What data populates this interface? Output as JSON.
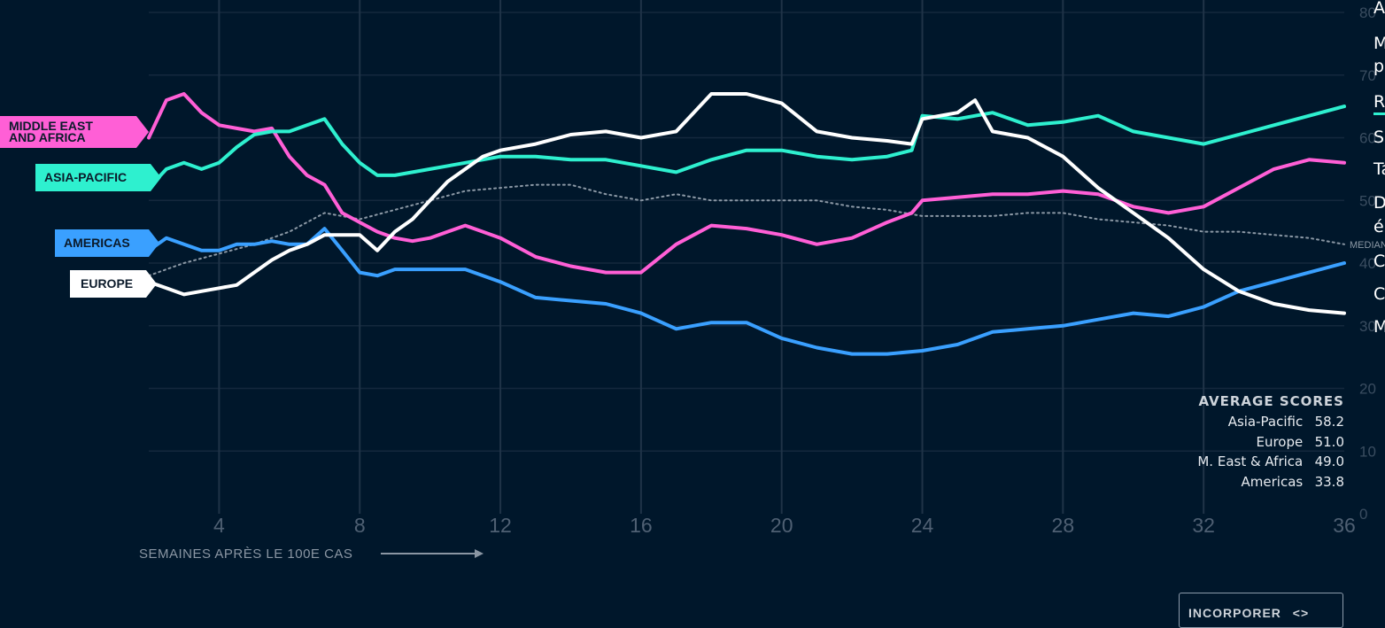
{
  "chart_data": {
    "type": "line",
    "xlabel": "SEMAINES APRÈS LE 100E CAS",
    "xticks": [
      4,
      8,
      12,
      16,
      20,
      24,
      28,
      32,
      36
    ],
    "yticks": [
      0,
      10,
      20,
      30,
      40,
      50,
      60,
      70,
      80
    ],
    "xlim": [
      2,
      36
    ],
    "ylim": [
      0,
      80
    ],
    "median_label": "MEDIAN",
    "series": [
      {
        "name": "MIDDLE EAST AND AFRICA",
        "color": "#ff5fd6",
        "x": [
          2,
          2.5,
          3,
          3.5,
          4,
          4.5,
          5,
          5.5,
          6,
          6.5,
          7,
          7.5,
          8,
          8.5,
          9,
          9.5,
          10,
          10.5,
          11,
          11.5,
          12,
          13,
          14,
          15,
          16,
          17,
          18,
          19,
          20,
          21,
          22,
          23,
          23.7,
          24,
          25,
          26,
          27,
          28,
          29,
          30,
          31,
          32,
          33,
          34,
          35,
          36
        ],
        "values": [
          60,
          66,
          67,
          64,
          62,
          61.5,
          61,
          61.5,
          57,
          54,
          52.5,
          48,
          46.5,
          45,
          44,
          43.5,
          44,
          45,
          46,
          45,
          44,
          41,
          39.5,
          38.5,
          38.5,
          43,
          46,
          45.5,
          44.5,
          43,
          44,
          46.5,
          48,
          50,
          50.5,
          51,
          51,
          51.5,
          51,
          49,
          48,
          49,
          52,
          55,
          56.5,
          56
        ]
      },
      {
        "name": "ASIA-PACIFIC",
        "color": "#2ef0cf",
        "x": [
          2,
          2.5,
          3,
          3.5,
          4,
          4.5,
          5,
          5.5,
          6,
          6.5,
          7,
          7.5,
          8,
          8.5,
          9,
          10,
          11,
          12,
          13,
          14,
          15,
          16,
          17,
          18,
          19,
          20,
          21,
          22,
          23,
          23.7,
          24,
          25,
          26,
          27,
          28,
          29,
          30,
          31,
          32,
          33,
          34,
          35,
          36
        ],
        "values": [
          52,
          55,
          56,
          55,
          56,
          58.5,
          60.5,
          61,
          61,
          62,
          63,
          59,
          56,
          54,
          54,
          55,
          56,
          57,
          57,
          56.5,
          56.5,
          55.5,
          54.5,
          56.5,
          58,
          58,
          57,
          56.5,
          57,
          58,
          63.5,
          63,
          64,
          62,
          62.5,
          63.5,
          61,
          60,
          59,
          60.5,
          62,
          63.5,
          65
        ]
      },
      {
        "name": "AMERICAS",
        "color": "#3aa0ff",
        "x": [
          2,
          2.5,
          3,
          3.5,
          4,
          4.5,
          5,
          5.5,
          6,
          6.5,
          7,
          7.5,
          8,
          8.5,
          9,
          10,
          11,
          12,
          13,
          14,
          15,
          16,
          17,
          18,
          19,
          20,
          21,
          22,
          23,
          24,
          25,
          26,
          27,
          28,
          29,
          30,
          31,
          32,
          33,
          34,
          35,
          36
        ],
        "values": [
          42,
          44,
          43,
          42,
          42,
          43,
          43,
          43.5,
          43,
          43,
          45.5,
          42,
          38.5,
          38,
          39,
          39,
          39,
          37,
          34.5,
          34,
          33.5,
          32,
          29.5,
          30.5,
          30.5,
          28,
          26.5,
          25.5,
          25.5,
          26,
          27,
          29,
          29.5,
          30,
          31,
          32,
          31.5,
          33,
          35.5,
          37,
          38.5,
          40
        ]
      },
      {
        "name": "EUROPE",
        "color": "#ffffff",
        "x": [
          2,
          2.5,
          3,
          3.5,
          4,
          4.5,
          5,
          5.5,
          6,
          6.5,
          7,
          7.5,
          8,
          8.5,
          9,
          9.5,
          10,
          10.5,
          11,
          11.5,
          12,
          13,
          14,
          15,
          16,
          17,
          17.5,
          18,
          19,
          20,
          21,
          22,
          23,
          23.7,
          24,
          25,
          25.5,
          26,
          27,
          28,
          29,
          30,
          31,
          32,
          33,
          34,
          35,
          36
        ],
        "values": [
          37,
          36,
          35,
          35.5,
          36,
          36.5,
          38.5,
          40.5,
          42,
          43,
          44.5,
          44.5,
          44.5,
          42,
          45,
          47,
          50,
          53,
          55,
          57,
          58,
          59,
          60.5,
          61,
          60,
          61,
          64,
          67,
          67,
          65.5,
          61,
          60,
          59.5,
          59,
          63,
          64,
          66,
          61,
          60,
          57,
          52,
          48,
          44,
          39,
          35.5,
          33.5,
          32.5,
          32
        ]
      },
      {
        "name": "MEDIAN",
        "color": "#8b98a5",
        "dashed": true,
        "x": [
          2,
          3,
          4,
          5,
          6,
          7,
          8,
          9,
          10,
          11,
          12,
          13,
          14,
          15,
          16,
          17,
          18,
          19,
          20,
          21,
          22,
          23,
          24,
          25,
          26,
          27,
          28,
          29,
          30,
          31,
          32,
          33,
          34,
          35,
          36
        ],
        "values": [
          38,
          40,
          41.5,
          43,
          45,
          48,
          47,
          48.5,
          50,
          51.5,
          52,
          52.5,
          52.5,
          51,
          50,
          51,
          50,
          50,
          50,
          50,
          49,
          48.5,
          47.5,
          47.5,
          47.5,
          48,
          48,
          47,
          46.5,
          46,
          45,
          45,
          44.5,
          44,
          43
        ]
      }
    ],
    "average_scores": {
      "title": "AVERAGE SCORES",
      "rows": [
        {
          "label": "Asia-Pacific",
          "value": "58.2"
        },
        {
          "label": "Europe",
          "value": "51.0"
        },
        {
          "label": "M. East & Africa",
          "value": "49.0"
        },
        {
          "label": "Americas",
          "value": "33.8"
        }
      ]
    }
  },
  "labels": {
    "mea": [
      "MIDDLE EAST",
      "AND AFRICA"
    ],
    "asia": "ASIA-PACIFIC",
    "americas": "AMERICAS",
    "europe": "EUROPE"
  },
  "right_panel_letters": [
    "A",
    "M",
    "p",
    "R",
    "S",
    "Ta",
    "D",
    "é",
    "C",
    "C",
    "M"
  ],
  "embed_button": "INCORPORER"
}
